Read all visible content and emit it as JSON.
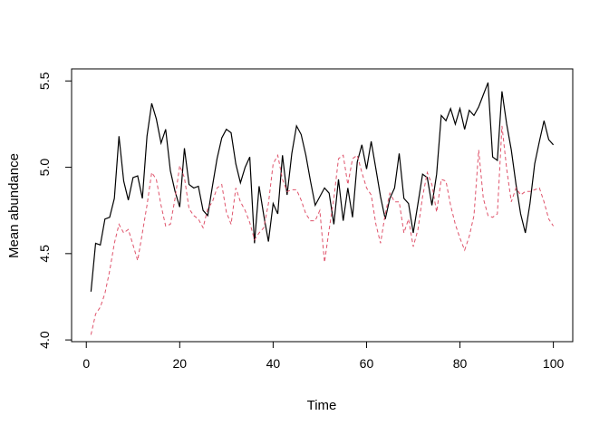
{
  "figure": {
    "background": "#ffffff",
    "frame_color": "#000000",
    "text_color": "#000000"
  },
  "chart_data": {
    "type": "line",
    "title": "",
    "xlabel": "Time",
    "ylabel": "Mean abundance",
    "x_ticks": [
      0,
      20,
      40,
      60,
      80,
      100
    ],
    "y_ticks": [
      "4.0",
      "4.5",
      "5.0",
      "5.5"
    ],
    "xlim": [
      -3.15,
      104.15
    ],
    "ylim": [
      3.99,
      5.57
    ],
    "grid": "off",
    "legend": "none",
    "x_start": 1,
    "x_step": 1,
    "series": [
      {
        "name": "series-1-solid-black",
        "color": "#000000",
        "style": "solid",
        "values": [
          4.28,
          4.56,
          4.55,
          4.7,
          4.71,
          4.82,
          5.18,
          4.92,
          4.81,
          4.94,
          4.95,
          4.82,
          5.18,
          5.37,
          5.28,
          5.14,
          5.22,
          4.98,
          4.86,
          4.77,
          5.11,
          4.9,
          4.88,
          4.89,
          4.75,
          4.72,
          4.89,
          5.05,
          5.17,
          5.22,
          5.2,
          5.02,
          4.91,
          5.0,
          5.06,
          4.56,
          4.89,
          4.72,
          4.57,
          4.79,
          4.73,
          5.07,
          4.84,
          5.08,
          5.24,
          5.19,
          5.07,
          4.92,
          4.78,
          4.83,
          4.88,
          4.85,
          4.67,
          4.93,
          4.69,
          4.88,
          4.71,
          5.03,
          5.13,
          4.99,
          5.15,
          4.99,
          4.83,
          4.7,
          4.82,
          4.88,
          5.08,
          4.82,
          4.79,
          4.62,
          4.79,
          4.96,
          4.94,
          4.78,
          4.96,
          5.3,
          5.27,
          5.34,
          5.25,
          5.34,
          5.22,
          5.33,
          5.3,
          5.35,
          5.42,
          5.49,
          5.06,
          5.04,
          5.44,
          5.25,
          5.1,
          4.9,
          4.73,
          4.62,
          4.79,
          5.02,
          5.15,
          5.27,
          5.16,
          5.13
        ]
      },
      {
        "name": "series-2-dashed-red",
        "color": "#DF536B",
        "style": "dashed",
        "values": [
          4.03,
          4.15,
          4.19,
          4.27,
          4.4,
          4.56,
          4.67,
          4.62,
          4.64,
          4.55,
          4.46,
          4.62,
          4.78,
          4.97,
          4.93,
          4.78,
          4.66,
          4.67,
          4.82,
          5.01,
          4.94,
          4.76,
          4.72,
          4.7,
          4.65,
          4.76,
          4.8,
          4.88,
          4.9,
          4.74,
          4.67,
          4.88,
          4.8,
          4.75,
          4.68,
          4.58,
          4.62,
          4.65,
          4.79,
          5.02,
          5.07,
          4.93,
          4.86,
          4.87,
          4.87,
          4.81,
          4.73,
          4.69,
          4.69,
          4.75,
          4.45,
          4.64,
          4.82,
          5.05,
          5.07,
          4.9,
          5.05,
          5.07,
          4.97,
          4.88,
          4.84,
          4.67,
          4.56,
          4.73,
          4.85,
          4.8,
          4.8,
          4.62,
          4.7,
          4.54,
          4.64,
          4.83,
          4.97,
          4.9,
          4.74,
          4.93,
          4.92,
          4.78,
          4.67,
          4.59,
          4.52,
          4.6,
          4.72,
          5.1,
          4.82,
          4.72,
          4.71,
          4.73,
          5.24,
          4.99,
          4.8,
          4.88,
          4.84,
          4.86,
          4.86,
          4.87,
          4.88,
          4.8,
          4.7,
          4.66
        ]
      }
    ]
  }
}
